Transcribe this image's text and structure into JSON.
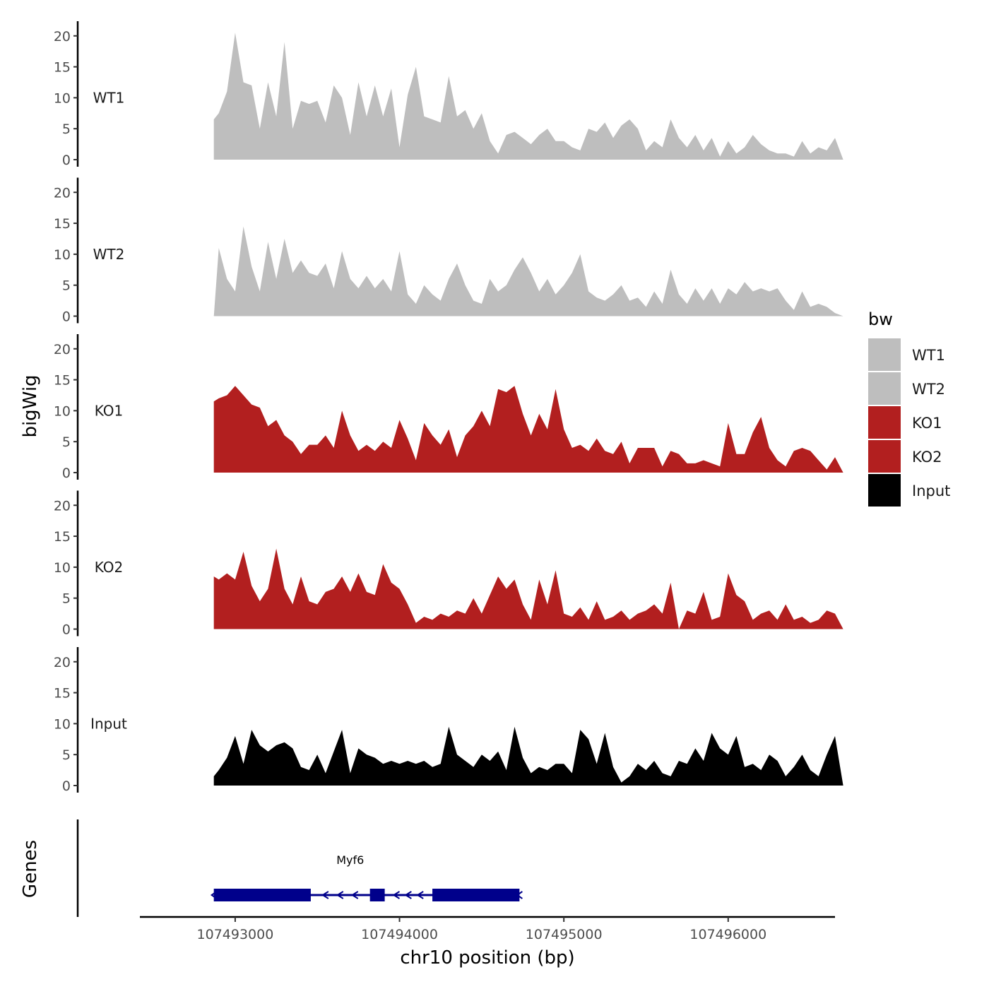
{
  "chart_data": {
    "type": "area",
    "chromosome": "chr10",
    "xlabel": "chr10 position (bp)",
    "ylabel": "bigWig",
    "gene_panel_label": "Genes",
    "xlim": [
      107492420,
      107496650
    ],
    "region": [
      107492870,
      107496700
    ],
    "x_ticks": [
      107493000,
      107494000,
      107495000,
      107496000
    ],
    "x_tick_labels": [
      "107493000",
      "107494000",
      "107495000",
      "107496000"
    ],
    "ylim": [
      0,
      21
    ],
    "y_ticks": [
      0,
      5,
      10,
      15,
      20
    ],
    "y_tick_labels": [
      "0",
      "5",
      "10",
      "15",
      "20"
    ],
    "tracks": [
      {
        "name": "WT1",
        "color": "#bebebe",
        "x": [
          107492870,
          107492900,
          107492950,
          107493000,
          107493050,
          107493100,
          107493150,
          107493200,
          107493250,
          107493300,
          107493350,
          107493400,
          107493450,
          107493500,
          107493550,
          107493600,
          107493650,
          107493700,
          107493750,
          107493800,
          107493850,
          107493900,
          107493950,
          107494000,
          107494050,
          107494100,
          107494150,
          107494200,
          107494250,
          107494300,
          107494350,
          107494400,
          107494450,
          107494500,
          107494550,
          107494600,
          107494650,
          107494700,
          107494750,
          107494800,
          107494850,
          107494900,
          107494950,
          107495000,
          107495050,
          107495100,
          107495150,
          107495200,
          107495250,
          107495300,
          107495350,
          107495400,
          107495450,
          107495500,
          107495550,
          107495600,
          107495650,
          107495700,
          107495750,
          107495800,
          107495850,
          107495900,
          107495950,
          107496000,
          107496050,
          107496100,
          107496150,
          107496200,
          107496250,
          107496300,
          107496350,
          107496400,
          107496450,
          107496500,
          107496550,
          107496600,
          107496650,
          107496700
        ],
        "values": [
          6.5,
          7.5,
          11,
          20.5,
          12.5,
          12,
          5,
          12.5,
          7,
          19,
          5,
          9.5,
          9,
          9.5,
          6,
          12,
          10,
          4,
          12.5,
          7,
          12,
          7,
          11.5,
          2,
          10.5,
          15,
          7,
          6.5,
          6,
          13.5,
          7,
          8,
          5,
          7.5,
          3,
          1,
          4,
          4.5,
          3.5,
          2.5,
          4,
          5,
          3,
          3,
          2,
          1.5,
          5,
          4.5,
          6,
          3.5,
          5.5,
          6.5,
          5,
          1.5,
          3,
          2,
          6.5,
          3.5,
          2,
          4,
          1.5,
          3.5,
          0.5,
          3,
          1,
          2,
          4,
          2.5,
          1.5,
          1,
          1,
          0.5,
          3,
          1,
          2,
          1.5,
          3.5,
          0
        ],
        "label_y": 10
      },
      {
        "name": "WT2",
        "color": "#bebebe",
        "x": [
          107492870,
          107492900,
          107492950,
          107493000,
          107493050,
          107493100,
          107493150,
          107493200,
          107493250,
          107493300,
          107493350,
          107493400,
          107493450,
          107493500,
          107493550,
          107493600,
          107493650,
          107493700,
          107493750,
          107493800,
          107493850,
          107493900,
          107493950,
          107494000,
          107494050,
          107494100,
          107494150,
          107494200,
          107494250,
          107494300,
          107494350,
          107494400,
          107494450,
          107494500,
          107494550,
          107494600,
          107494650,
          107494700,
          107494750,
          107494800,
          107494850,
          107494900,
          107494950,
          107495000,
          107495050,
          107495100,
          107495150,
          107495200,
          107495250,
          107495300,
          107495350,
          107495400,
          107495450,
          107495500,
          107495550,
          107495600,
          107495650,
          107495700,
          107495750,
          107495800,
          107495850,
          107495900,
          107495950,
          107496000,
          107496050,
          107496100,
          107496150,
          107496200,
          107496250,
          107496300,
          107496350,
          107496400,
          107496450,
          107496500,
          107496550,
          107496600,
          107496650,
          107496700
        ],
        "values": [
          0,
          11,
          6,
          4,
          14.5,
          8,
          4,
          12,
          6,
          12.5,
          7,
          9,
          7,
          6.5,
          8.5,
          4.5,
          10.5,
          6,
          4.5,
          6.5,
          4.5,
          6,
          4,
          10.5,
          3.5,
          2,
          5,
          3.5,
          2.5,
          6,
          8.5,
          5,
          2.5,
          2,
          6,
          4,
          5,
          7.5,
          9.5,
          7,
          4,
          6,
          3.5,
          5,
          7,
          10,
          4,
          3,
          2.5,
          3.5,
          5,
          2.5,
          3,
          1.5,
          4,
          2,
          7.5,
          3.5,
          2,
          4.5,
          2.5,
          4.5,
          2,
          4.5,
          3.5,
          5.5,
          4,
          4.5,
          4,
          4.5,
          2.5,
          1,
          4,
          1.5,
          2,
          1.5,
          0.5,
          0
        ],
        "label_y": 10
      },
      {
        "name": "KO1",
        "color": "#b21f1f",
        "x": [
          107492870,
          107492900,
          107492950,
          107493000,
          107493050,
          107493100,
          107493150,
          107493200,
          107493250,
          107493300,
          107493350,
          107493400,
          107493450,
          107493500,
          107493550,
          107493600,
          107493650,
          107493700,
          107493750,
          107493800,
          107493850,
          107493900,
          107493950,
          107494000,
          107494050,
          107494100,
          107494150,
          107494200,
          107494250,
          107494300,
          107494350,
          107494400,
          107494450,
          107494500,
          107494550,
          107494600,
          107494650,
          107494700,
          107494750,
          107494800,
          107494850,
          107494900,
          107494950,
          107495000,
          107495050,
          107495100,
          107495150,
          107495200,
          107495250,
          107495300,
          107495350,
          107495400,
          107495450,
          107495500,
          107495550,
          107495600,
          107495650,
          107495700,
          107495750,
          107495800,
          107495850,
          107495900,
          107495950,
          107496000,
          107496050,
          107496100,
          107496150,
          107496200,
          107496250,
          107496300,
          107496350,
          107496400,
          107496450,
          107496500,
          107496550,
          107496600,
          107496650,
          107496700
        ],
        "values": [
          11.5,
          12,
          12.5,
          14,
          12.5,
          11,
          10.5,
          7.5,
          8.5,
          6,
          5,
          3,
          4.5,
          4.5,
          6,
          4,
          10,
          6,
          3.5,
          4.5,
          3.5,
          5,
          4,
          8.5,
          5.5,
          2,
          8,
          6,
          4.5,
          7,
          2.5,
          6,
          7.5,
          10,
          7.5,
          13.5,
          13,
          14,
          9.5,
          6,
          9.5,
          7,
          13.5,
          7,
          4,
          4.5,
          3.5,
          5.5,
          3.5,
          3,
          5,
          1.5,
          4,
          4,
          4,
          1,
          3.5,
          3,
          1.5,
          1.5,
          2,
          1.5,
          1,
          8,
          3,
          3,
          6.5,
          9,
          4,
          2,
          1,
          3.5,
          4,
          3.5,
          2,
          0.5,
          2.5,
          0
        ],
        "label_y": 10
      },
      {
        "name": "KO2",
        "color": "#b21f1f",
        "x": [
          107492870,
          107492900,
          107492950,
          107493000,
          107493050,
          107493100,
          107493150,
          107493200,
          107493250,
          107493300,
          107493350,
          107493400,
          107493450,
          107493500,
          107493550,
          107493600,
          107493650,
          107493700,
          107493750,
          107493800,
          107493850,
          107493900,
          107493950,
          107494000,
          107494050,
          107494100,
          107494150,
          107494200,
          107494250,
          107494300,
          107494350,
          107494400,
          107494450,
          107494500,
          107494550,
          107494600,
          107494650,
          107494700,
          107494750,
          107494800,
          107494850,
          107494900,
          107494950,
          107495000,
          107495050,
          107495100,
          107495150,
          107495200,
          107495250,
          107495300,
          107495350,
          107495400,
          107495450,
          107495500,
          107495550,
          107495600,
          107495650,
          107495700,
          107495750,
          107495800,
          107495850,
          107495900,
          107495950,
          107496000,
          107496050,
          107496100,
          107496150,
          107496200,
          107496250,
          107496300,
          107496350,
          107496400,
          107496450,
          107496500,
          107496550,
          107496600,
          107496650,
          107496700
        ],
        "values": [
          8.5,
          8,
          9,
          8,
          12.5,
          7,
          4.5,
          6.5,
          13,
          6.5,
          4,
          8.5,
          4.5,
          4,
          6,
          6.5,
          8.5,
          6,
          9,
          6,
          5.5,
          10.5,
          7.5,
          6.5,
          4,
          1,
          2,
          1.5,
          2.5,
          2,
          3,
          2.5,
          5,
          2.5,
          5.5,
          8.5,
          6.5,
          8,
          4,
          1.5,
          8,
          4,
          9.5,
          2.5,
          2,
          3.5,
          1.5,
          4.5,
          1.5,
          2,
          3,
          1.5,
          2.5,
          3,
          4,
          2.5,
          7.5,
          0,
          3,
          2.5,
          6,
          1.5,
          2,
          9,
          5.5,
          4.5,
          1.5,
          2.5,
          3,
          1.5,
          4,
          1.5,
          2,
          1,
          1.5,
          3,
          2.5,
          0
        ],
        "label_y": 10
      },
      {
        "name": "Input",
        "color": "#000000",
        "x": [
          107492870,
          107492900,
          107492950,
          107493000,
          107493050,
          107493100,
          107493150,
          107493200,
          107493250,
          107493300,
          107493350,
          107493400,
          107493450,
          107493500,
          107493550,
          107493600,
          107493650,
          107493700,
          107493750,
          107493800,
          107493850,
          107493900,
          107493950,
          107494000,
          107494050,
          107494100,
          107494150,
          107494200,
          107494250,
          107494300,
          107494350,
          107494400,
          107494450,
          107494500,
          107494550,
          107494600,
          107494650,
          107494700,
          107494750,
          107494800,
          107494850,
          107494900,
          107494950,
          107495000,
          107495050,
          107495100,
          107495150,
          107495200,
          107495250,
          107495300,
          107495350,
          107495400,
          107495450,
          107495500,
          107495550,
          107495600,
          107495650,
          107495700,
          107495750,
          107495800,
          107495850,
          107495900,
          107495950,
          107496000,
          107496050,
          107496100,
          107496150,
          107496200,
          107496250,
          107496300,
          107496350,
          107496400,
          107496450,
          107496500,
          107496550,
          107496600,
          107496650,
          107496700
        ],
        "values": [
          1.5,
          2.5,
          4.5,
          8,
          3.5,
          9,
          6.5,
          5.5,
          6.5,
          7,
          6,
          3,
          2.5,
          5,
          2,
          5.5,
          9,
          2,
          6,
          5,
          4.5,
          3.5,
          4,
          3.5,
          4,
          3.5,
          4,
          3,
          3.5,
          9.5,
          5,
          4,
          3,
          5,
          4,
          5.5,
          2.5,
          9.5,
          4.5,
          2,
          3,
          2.5,
          3.5,
          3.5,
          2,
          9,
          7.5,
          3.5,
          8.5,
          3,
          0.5,
          1.5,
          3.5,
          2.5,
          4,
          2,
          1.5,
          4,
          3.5,
          6,
          4,
          8.5,
          6,
          5,
          8,
          3,
          3.5,
          2.5,
          5,
          4,
          1.5,
          3,
          5,
          2.5,
          1.5,
          5,
          8,
          0
        ],
        "label_y": 10
      }
    ],
    "legend": {
      "title": "bw",
      "position": "right",
      "items": [
        {
          "label": "WT1",
          "color": "#bebebe"
        },
        {
          "label": "WT2",
          "color": "#bebebe"
        },
        {
          "label": "KO1",
          "color": "#b21f1f"
        },
        {
          "label": "KO2",
          "color": "#b21f1f"
        },
        {
          "label": "Input",
          "color": "#000000"
        }
      ]
    },
    "genes": [
      {
        "name": "Myf6",
        "start": 107492870,
        "end": 107494730,
        "strand": "-",
        "color": "#00008b",
        "exons": [
          [
            107492870,
            107493460
          ],
          [
            107493820,
            107493910
          ],
          [
            107494200,
            107494730
          ]
        ]
      }
    ]
  }
}
